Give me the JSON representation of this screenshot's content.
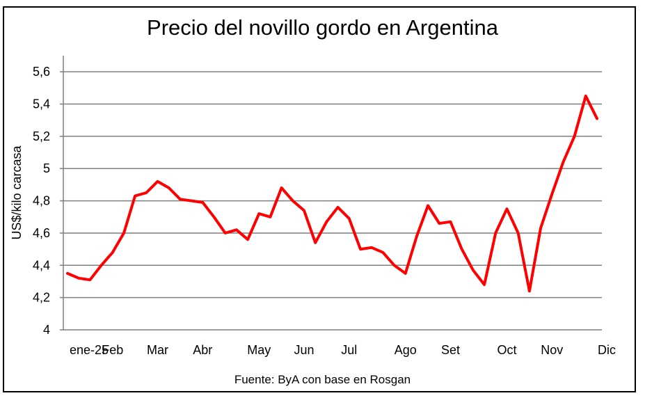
{
  "chart_data": {
    "type": "line",
    "title": "Precio del novillo gordo en Argentina",
    "ylabel": "US$/kilo carcasa",
    "xlabel": "",
    "source": "Fuente: ByA con base en Rosgan",
    "ylim": [
      4,
      5.7
    ],
    "yticks": [
      "4",
      "4,2",
      "4,4",
      "4,6",
      "4,8",
      "5",
      "5,2",
      "5,4",
      "5,6"
    ],
    "ytick_values": [
      4,
      4.2,
      4.4,
      4.6,
      4.8,
      5.0,
      5.2,
      5.4,
      5.6
    ],
    "x_labels": [
      "ene-25",
      "Feb",
      "Mar",
      "Abr",
      "May",
      "Jun",
      "Jul",
      "Ago",
      "Set",
      "Oct",
      "Nov",
      "Dic"
    ],
    "x_label_index": [
      1,
      5,
      9,
      13,
      18,
      22,
      26,
      31,
      35,
      40,
      44,
      48
    ],
    "grid": true,
    "line_color": "#ff0000",
    "series": [
      {
        "values": [
          4.35,
          4.32,
          4.31,
          4.4,
          4.48,
          4.6,
          4.83,
          4.85,
          4.92,
          4.88,
          4.81,
          4.8,
          4.79,
          4.7,
          4.6,
          4.62,
          4.56,
          4.72,
          4.7,
          4.88,
          4.8,
          4.74,
          4.54,
          4.67,
          4.76,
          4.69,
          4.5,
          4.51,
          4.48,
          4.4,
          4.35,
          4.58,
          4.77,
          4.66,
          4.67,
          4.5,
          4.37,
          4.28,
          4.6,
          4.75,
          4.6,
          4.24,
          4.63,
          4.84,
          5.04,
          5.2,
          5.45,
          5.31
        ]
      }
    ]
  }
}
